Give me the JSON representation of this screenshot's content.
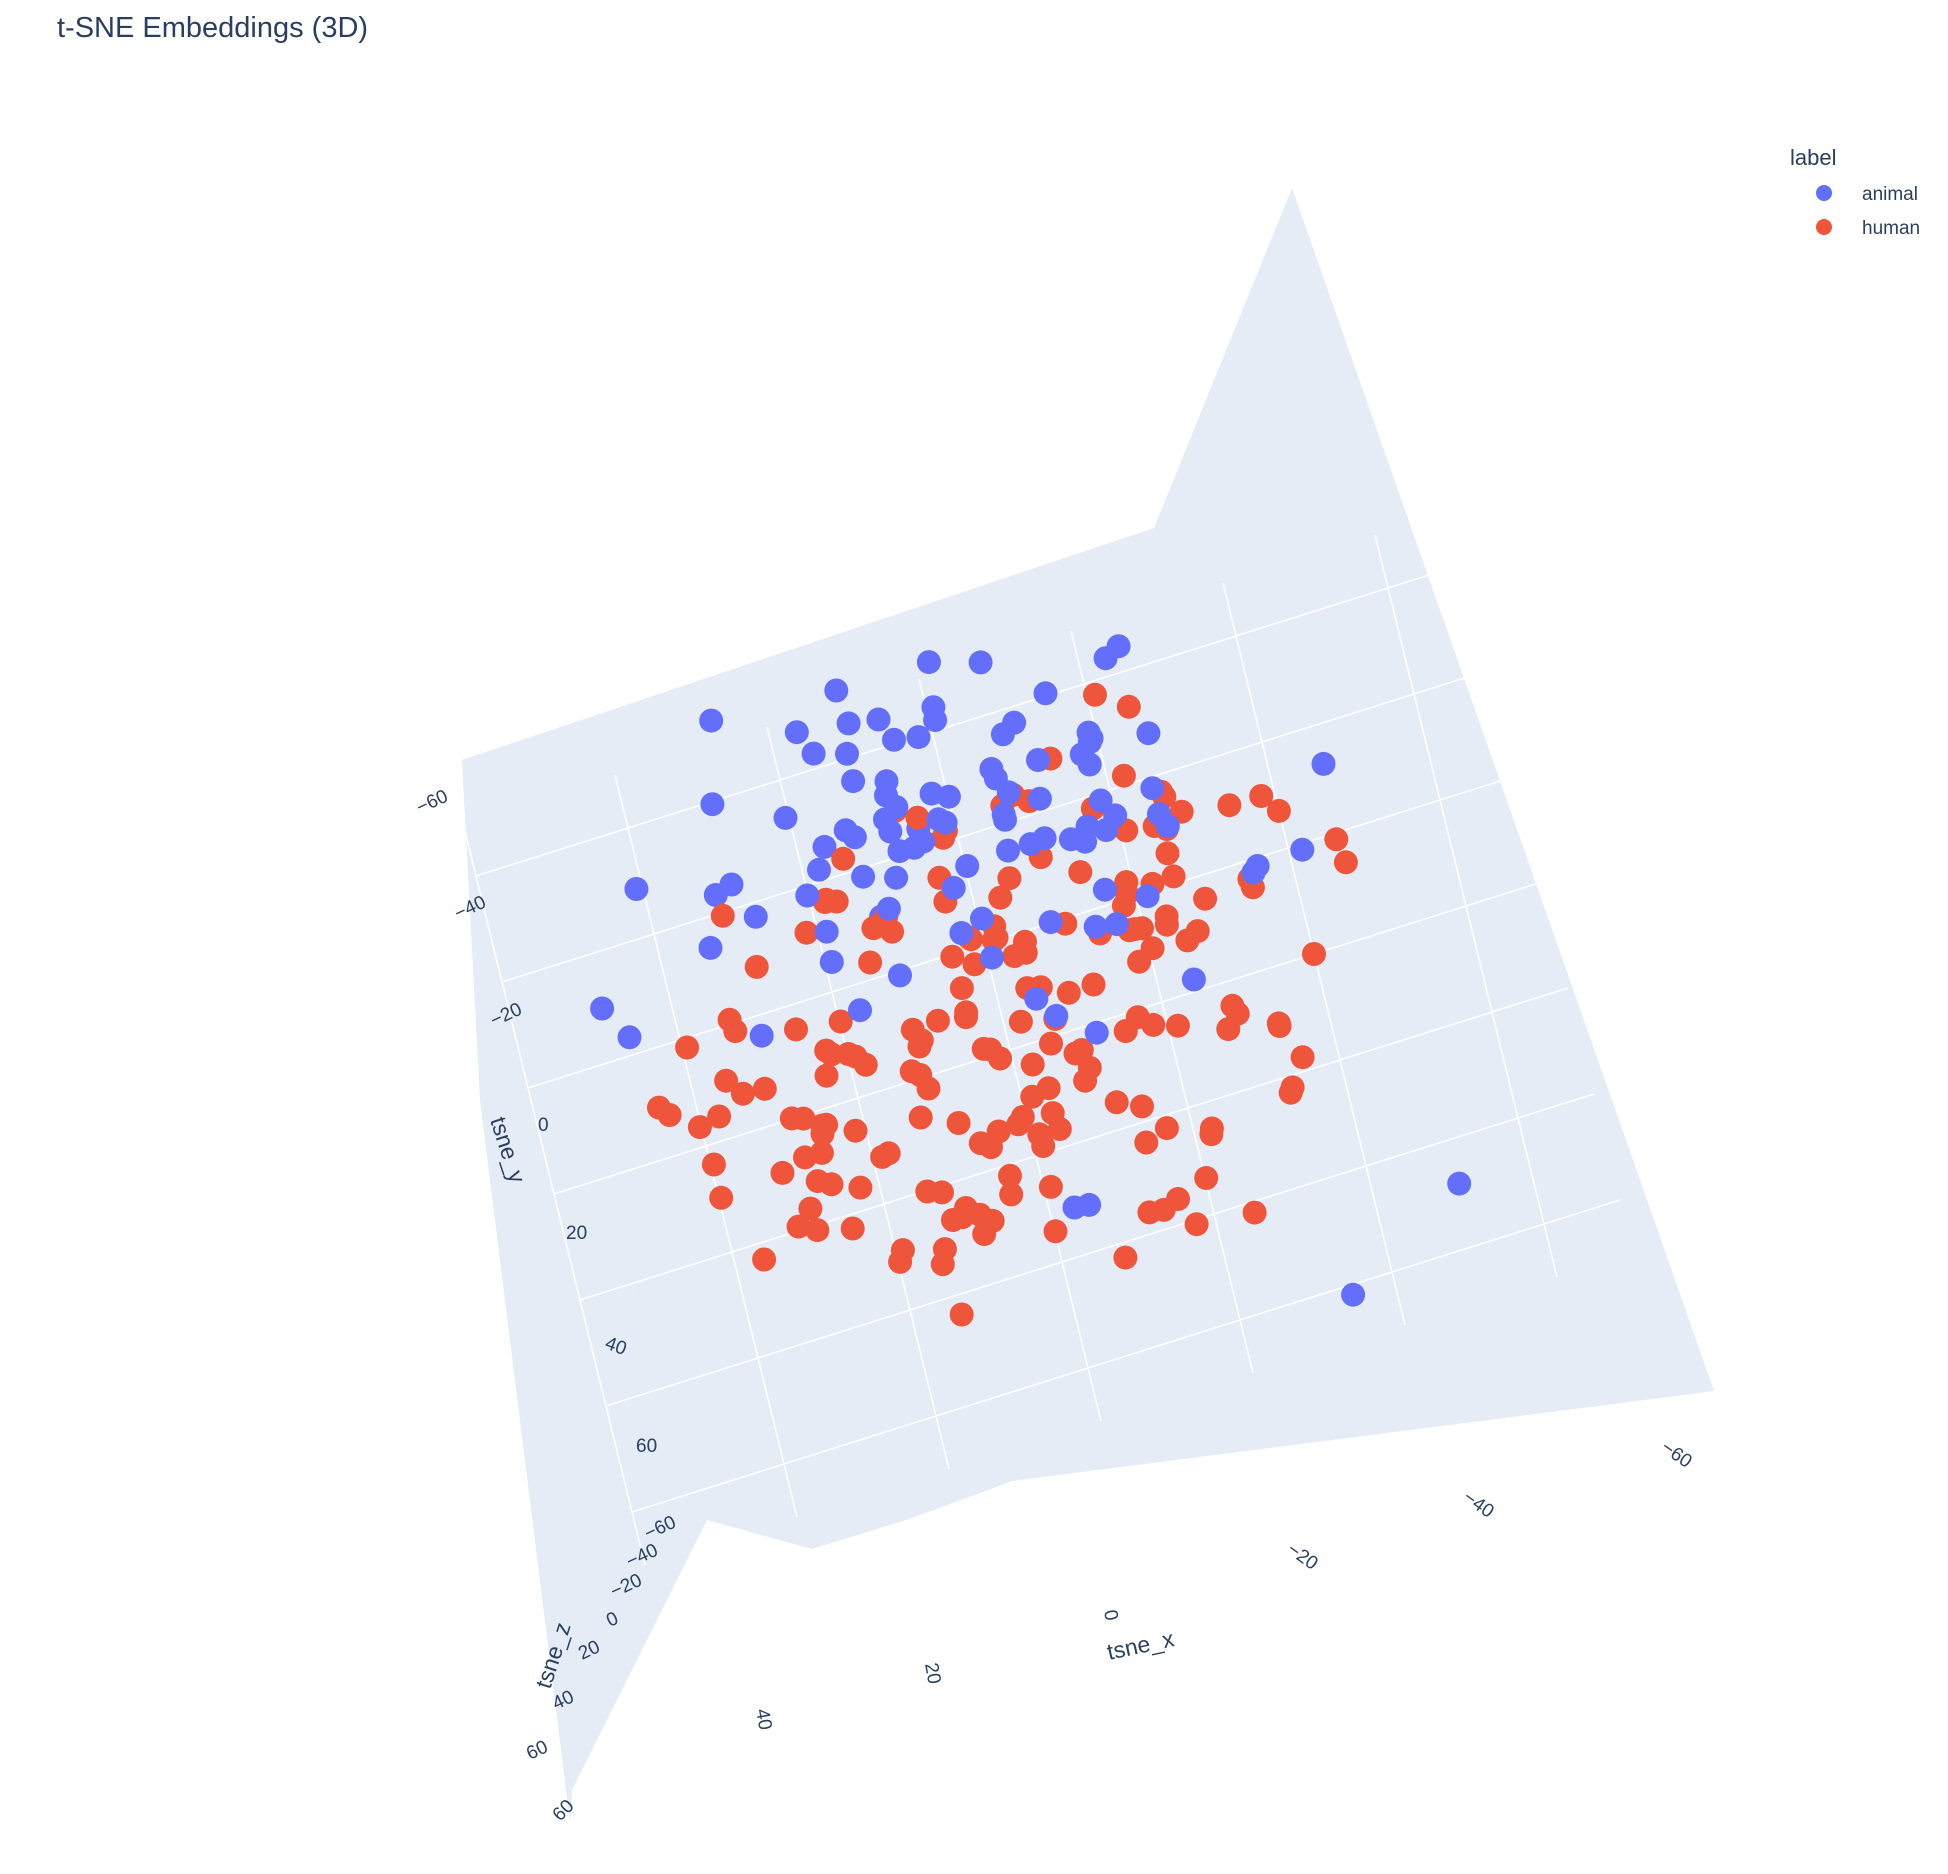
{
  "chart_data": {
    "type": "scatter",
    "title": "t-SNE Embeddings (3D)",
    "xlabel": "tsne_x",
    "ylabel": "tsne_y",
    "zlabel": "tsne_z",
    "x_ticks": [
      "−60",
      "−40",
      "−20",
      "0",
      "20",
      "40"
    ],
    "y_ticks": [
      "−60",
      "−40",
      "−20",
      "0",
      "20",
      "40",
      "60"
    ],
    "z_ticks": [
      "−60",
      "−40",
      "−20",
      "0",
      "20",
      "40",
      "60",
      "60"
    ],
    "grid": true,
    "legend": {
      "title": "label",
      "placement": "top-right"
    },
    "colors": {
      "animal": "#636efa",
      "human": "#ef553b",
      "scene_bg": "#e5ecf6",
      "grid": "#ffffff",
      "text": "#2a3f5f"
    },
    "series": [
      {
        "name": "animal",
        "x": [
          -3,
          1,
          10,
          -9,
          11,
          -9,
          -23,
          7,
          3,
          -15,
          19,
          -8,
          -12,
          9,
          4,
          -9,
          2,
          -19,
          5,
          9,
          13,
          -12,
          -30,
          -6,
          28,
          25,
          -10,
          -21,
          18,
          10,
          4,
          4,
          -4,
          -27,
          18,
          3,
          -5,
          -22,
          -15,
          -15,
          -3,
          -13,
          0,
          -5,
          -11,
          -8,
          -33,
          -12,
          7,
          7,
          -1,
          -6,
          34,
          18,
          -3,
          -9,
          27,
          23,
          10,
          -23,
          -19,
          2,
          14,
          6,
          -15,
          1,
          -15,
          -5,
          -2,
          29,
          6,
          -8,
          -16,
          -24,
          22,
          -1,
          12,
          -1,
          6,
          6,
          20,
          -2,
          3,
          13,
          -37,
          -14,
          42,
          25,
          6,
          20,
          22,
          1,
          33,
          -7,
          35,
          -18,
          -17,
          -38,
          3,
          -12,
          -41,
          -28
        ],
        "y": [
          -46,
          -43,
          -45,
          -35,
          -56,
          -29,
          -44,
          -56,
          -44,
          -33,
          -32,
          -56,
          -61,
          -34,
          -32,
          -62,
          -46,
          -42,
          -58,
          -43,
          -53,
          -46,
          -28,
          -47,
          -38,
          -41,
          -45,
          -20,
          -60,
          -35,
          -38,
          -21,
          -46,
          -62,
          -49,
          -40,
          -41,
          -49,
          -51,
          -58,
          -43,
          -42,
          -55,
          -61,
          -45,
          -43,
          -21,
          -41,
          -29,
          -49,
          -33,
          -49,
          -23,
          -55,
          -47,
          -55,
          -41,
          -43,
          -50,
          -64,
          -60,
          -56,
          -61,
          -56,
          -58,
          -57,
          -50,
          -67,
          -33,
          -27,
          -28,
          -27,
          -34,
          -40,
          -30,
          -56,
          -60,
          -40,
          -35,
          -44,
          -47,
          -39,
          -27,
          -34,
          -49,
          -51,
          -19,
          -34,
          -21,
          -20,
          -48,
          -17,
          -36,
          -5,
          -5,
          -13,
          -40,
          -25,
          21,
          43,
          32,
          51
        ],
        "z": [
          -8,
          2,
          -6,
          -18,
          10,
          -19,
          9,
          -31,
          11,
          -1,
          -19,
          -10,
          -17,
          -16,
          -11,
          -21,
          22,
          -17,
          12,
          -17,
          -12,
          27,
          -14,
          19,
          8,
          -15,
          -15,
          -1,
          21,
          16,
          4,
          -26,
          -16,
          4,
          6,
          -8,
          -9,
          17,
          -8,
          -10,
          7,
          -13,
          15,
          -33,
          25,
          -14,
          -5,
          2,
          14,
          10,
          -19,
          -1,
          -10,
          -11,
          -8,
          1,
          5,
          -7,
          -4,
          -1,
          -18,
          7,
          -18,
          -10,
          17,
          23,
          -25,
          8,
          16,
          11,
          -16,
          -15,
          24,
          -3,
          -7,
          -16,
          11,
          5,
          16,
          -4,
          -23,
          22,
          14,
          12,
          -24,
          9,
          16,
          5,
          14,
          -7,
          17,
          -14,
          19,
          -10,
          27,
          -16,
          -7,
          -9,
          -15,
          17,
          -24,
          -16
        ]
      },
      {
        "name": "human",
        "x": [
          -15,
          -10,
          20,
          -17,
          -25,
          -1,
          -6,
          10,
          -14,
          -19,
          1,
          -1,
          13,
          -22,
          -18,
          45,
          29,
          11,
          -13,
          2,
          -21,
          -6,
          -1,
          -32,
          -19,
          -24,
          15,
          -9,
          -3,
          3,
          -25,
          36,
          -28,
          19,
          -40,
          24,
          3,
          11,
          -7,
          -9,
          34,
          4,
          -30,
          -12,
          -33,
          41,
          -18,
          -28,
          -45,
          -31,
          -8,
          -5,
          3,
          -31,
          -3,
          -2,
          1,
          25,
          34,
          -33,
          -7,
          17,
          -12,
          -33,
          -26,
          16,
          -34,
          -25,
          3,
          6,
          -9,
          -3,
          28,
          15,
          10,
          20,
          -5,
          21,
          -28,
          26,
          -33,
          40,
          29,
          -4,
          17,
          3,
          13,
          3,
          10,
          -13,
          -18,
          24,
          6,
          -19,
          -2,
          9,
          1,
          -5,
          6,
          5,
          39,
          24,
          29,
          -6,
          -37,
          18,
          15,
          -35,
          -26,
          -40,
          27,
          -16,
          -40,
          12,
          -14,
          -13,
          14,
          -17,
          25,
          -23,
          5,
          -31,
          -27,
          12,
          8,
          41,
          -20,
          -11,
          -12,
          -25,
          -12,
          24,
          -10,
          -13,
          -10,
          25,
          -10,
          19,
          27,
          -5,
          13,
          -37,
          7,
          -16,
          -26,
          24,
          -5,
          -11,
          -19,
          -6,
          -24,
          -34,
          -11,
          32,
          -33,
          16,
          40,
          -11,
          11,
          1,
          4,
          -14,
          -27,
          -21,
          27,
          4,
          -15,
          33,
          -3,
          -4,
          9,
          -18,
          19,
          -33,
          6,
          36,
          21,
          16,
          25,
          -29,
          -36,
          6,
          10,
          -26,
          8,
          -24,
          21,
          -27,
          18,
          14,
          -7,
          6
        ],
        "y": [
          -33,
          -22,
          -41,
          -21,
          -37,
          -37,
          -17,
          -29,
          31,
          -35,
          -30,
          5,
          -40,
          -30,
          -25,
          -10,
          -36,
          -25,
          14,
          -25,
          -12,
          -14,
          -6,
          8,
          -40,
          -39,
          -14,
          -25,
          -32,
          -2,
          -4,
          -11,
          -46,
          -13,
          -29,
          -7,
          -19,
          -25,
          22,
          28,
          7,
          -14,
          -13,
          27,
          -25,
          -5,
          -29,
          -6,
          -17,
          -3,
          -6,
          11,
          -7,
          -7,
          4,
          20,
          -11,
          13,
          -2,
          -17,
          27,
          -4,
          -13,
          -40,
          -20,
          -23,
          5,
          42,
          -5,
          14,
          11,
          39,
          -12,
          -6,
          28,
          -6,
          -15,
          9,
          -21,
          -7,
          13,
          17,
          1,
          -7,
          -1,
          15,
          45,
          -1,
          8,
          5,
          -14,
          21,
          31,
          -8,
          -16,
          -27,
          13,
          33,
          31,
          20,
          0,
          6,
          13,
          26,
          -26,
          13,
          28,
          -36,
          -10,
          0,
          13,
          -19,
          -27,
          -19,
          32,
          0,
          22,
          2,
          15,
          38,
          24,
          10,
          -28,
          -26,
          12,
          -21,
          3,
          30,
          11,
          -9,
          -28,
          11,
          -9,
          -15,
          -10,
          6,
          6,
          -13,
          0,
          -14,
          -9,
          -11,
          9,
          21,
          31,
          29,
          38,
          -6,
          -13,
          -28,
          3,
          -24,
          -3,
          12,
          12,
          15,
          3,
          19,
          1,
          8,
          -3,
          19,
          -6,
          28,
          26,
          18,
          -29,
          3,
          -3,
          -12,
          29,
          -9,
          13,
          23,
          32,
          16,
          -8,
          -2,
          5,
          -25,
          -14,
          32,
          30,
          10,
          15,
          13,
          29,
          34,
          11,
          -31,
          25,
          48
        ],
        "z": [
          17,
          12,
          -8,
          -3,
          7,
          13,
          -15,
          -14,
          26,
          4,
          6,
          6,
          4,
          3,
          -3,
          -1,
          5,
          -17,
          19,
          -13,
          3,
          23,
          -20,
          -4,
          13,
          -10,
          -11,
          25,
          24,
          -16,
          -21,
          -1,
          17,
          2,
          -15,
          -2,
          -3,
          17,
          8,
          23,
          -23,
          22,
          4,
          26,
          16,
          -2,
          20,
          22,
          -4,
          11,
          23,
          18,
          3,
          21,
          18,
          2,
          24,
          -27,
          -14,
          21,
          20,
          5,
          21,
          20,
          2,
          13,
          27,
          0,
          -13,
          6,
          -6,
          7,
          13,
          -8,
          2,
          6,
          8,
          9,
          7,
          17,
          10,
          -9,
          12,
          -6,
          12,
          2,
          2,
          12,
          24,
          22,
          -6,
          -12,
          3,
          11,
          9,
          5,
          -5,
          10,
          29,
          -3,
          11,
          8,
          6,
          -15,
          7,
          2,
          18,
          -8,
          7,
          0,
          1,
          -7,
          0,
          6,
          -5,
          10,
          -13,
          1,
          2,
          7,
          -2,
          -11,
          3,
          15,
          -4,
          -4,
          -3,
          -16,
          10,
          27,
          6,
          5,
          20,
          6,
          12,
          9,
          3,
          23,
          10,
          9,
          -5,
          6,
          10,
          -2,
          9,
          12,
          -7,
          15,
          2,
          19,
          -8,
          19,
          -9,
          -7,
          11,
          -18,
          -1,
          -7,
          4,
          25,
          -2,
          14,
          5,
          16,
          10,
          3,
          21,
          11,
          2,
          -4,
          13,
          -1,
          15,
          0,
          16,
          9,
          11,
          5,
          1,
          8,
          4,
          10,
          5,
          -18,
          12,
          14,
          -3,
          12,
          8,
          -3,
          -17,
          21
        ]
      }
    ]
  }
}
